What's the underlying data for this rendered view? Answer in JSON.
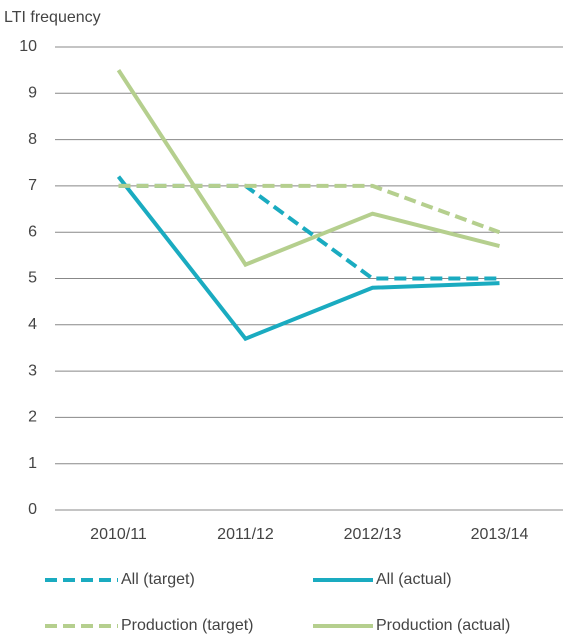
{
  "chart_data": {
    "type": "line",
    "y_label": "LTI frequency",
    "categories": [
      "2010/11",
      "2011/12",
      "2012/13",
      "2013/14"
    ],
    "series": [
      {
        "name": "All (target)",
        "color": "#1aabc0",
        "dashed": true,
        "values": [
          7,
          7,
          5,
          5
        ]
      },
      {
        "name": "All (actual)",
        "color": "#1aabc0",
        "dashed": false,
        "values": [
          7.2,
          3.7,
          4.8,
          4.9
        ]
      },
      {
        "name": "Production (target)",
        "color": "#b5cf8e",
        "dashed": true,
        "values": [
          7,
          7,
          7,
          6
        ]
      },
      {
        "name": "Production (actual)",
        "color": "#b5cf8e",
        "dashed": false,
        "values": [
          9.5,
          5.3,
          6.4,
          5.7
        ]
      }
    ],
    "ylim": [
      0,
      10
    ],
    "yticks": [
      0,
      1,
      2,
      3,
      4,
      5,
      6,
      7,
      8,
      9,
      10
    ],
    "grid": true
  }
}
